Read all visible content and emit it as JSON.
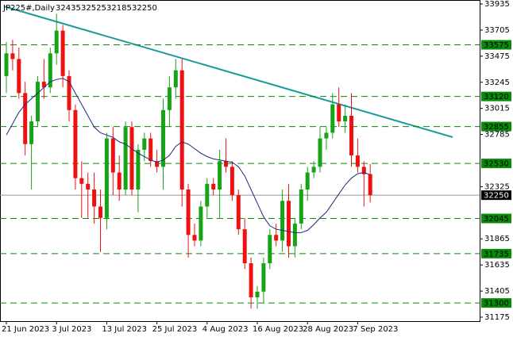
{
  "chart_data": {
    "type": "candlestick",
    "title": "JP225#,Daily",
    "categories": [
      "21 Jun 2023",
      null,
      null,
      null,
      null,
      null,
      null,
      null,
      "3 Jul 2023",
      null,
      null,
      null,
      null,
      null,
      null,
      null,
      "13 Jul 2023",
      null,
      null,
      null,
      null,
      null,
      null,
      null,
      "25 Jul 2023",
      null,
      null,
      null,
      null,
      null,
      null,
      null,
      "4 Aug 2023",
      null,
      null,
      null,
      null,
      null,
      null,
      null,
      "16 Aug 2023",
      null,
      null,
      null,
      null,
      null,
      null,
      null,
      "28 Aug 2023",
      null,
      null,
      null,
      null,
      null,
      null,
      null,
      "7 Sep 2023",
      null,
      null
    ],
    "open": [
      33300,
      33500,
      33450,
      33150,
      32700,
      32900,
      33250,
      33200,
      33500,
      33700,
      33300,
      33000,
      32400,
      32350,
      32300,
      32150,
      32050,
      32750,
      32450,
      32300,
      32850,
      32300,
      32650,
      32750,
      32550,
      32500,
      33000,
      33200,
      33350,
      32300,
      31900,
      31850,
      32150,
      32350,
      32300,
      32550,
      32500,
      32250,
      31950,
      31650,
      31350,
      31400,
      31650,
      31900,
      31850,
      32200,
      31800,
      32000,
      32300,
      32450,
      32500,
      32750,
      32800,
      33050,
      32900,
      32950,
      32600,
      32500,
      32435
    ],
    "high": [
      33600,
      33620,
      33550,
      33250,
      32950,
      33300,
      33450,
      33550,
      33850,
      33750,
      33350,
      33050,
      32550,
      32450,
      32450,
      32300,
      32800,
      32850,
      32600,
      32900,
      32900,
      32700,
      32800,
      32800,
      32650,
      33100,
      33300,
      33450,
      33450,
      32350,
      32000,
      32200,
      32400,
      32400,
      32650,
      32750,
      32550,
      32300,
      32050,
      31700,
      31450,
      31700,
      31950,
      32000,
      32300,
      32350,
      32050,
      32350,
      32500,
      32550,
      32850,
      32850,
      33150,
      33200,
      33050,
      33150,
      32750,
      32550,
      32525
    ],
    "low": [
      33150,
      33350,
      33100,
      32600,
      32300,
      32850,
      33100,
      33150,
      33400,
      33200,
      32900,
      32300,
      32050,
      32050,
      32000,
      31750,
      31950,
      32250,
      32200,
      32250,
      32250,
      32100,
      32550,
      32500,
      32450,
      32300,
      32850,
      33100,
      32150,
      31700,
      31800,
      31800,
      32050,
      32250,
      32050,
      32450,
      32200,
      31900,
      31600,
      31250,
      31250,
      31300,
      31600,
      31800,
      31750,
      31700,
      31700,
      31950,
      32200,
      32400,
      32450,
      32650,
      32750,
      32850,
      32800,
      32500,
      32450,
      32150,
      32185
    ],
    "close": [
      33500,
      33450,
      33150,
      32700,
      32900,
      33250,
      33200,
      33500,
      33700,
      33300,
      33000,
      32400,
      32350,
      32300,
      32150,
      32050,
      32750,
      32450,
      32300,
      32850,
      32300,
      32650,
      32750,
      32550,
      32500,
      33000,
      33200,
      33350,
      32300,
      31900,
      31850,
      32150,
      32350,
      32300,
      32550,
      32500,
      32250,
      31950,
      31650,
      31350,
      31400,
      31650,
      31900,
      31850,
      32200,
      31800,
      32000,
      32300,
      32450,
      32500,
      32750,
      32800,
      33050,
      32900,
      32950,
      32600,
      32500,
      32435,
      32250
    ],
    "up_color": "#17a317",
    "down_color": "#ee1111",
    "ma": {
      "color": "#1c2a78",
      "values": [
        32780,
        32880,
        32980,
        33050,
        33100,
        33150,
        33200,
        33250,
        33270,
        33280,
        33250,
        33150,
        33050,
        32950,
        32850,
        32800,
        32780,
        32760,
        32720,
        32700,
        32660,
        32620,
        32590,
        32560,
        32540,
        32560,
        32600,
        32680,
        32720,
        32700,
        32660,
        32620,
        32590,
        32570,
        32560,
        32550,
        32540,
        32500,
        32420,
        32300,
        32180,
        32060,
        31980,
        31950,
        31940,
        31930,
        31920,
        31920,
        31940,
        31990,
        32050,
        32100,
        32180,
        32260,
        32340,
        32400,
        32440,
        32450,
        32430
      ]
    },
    "levels": [
      33575,
      33120,
      32855,
      32530,
      32045,
      31735,
      31300
    ],
    "level_color": "#0a8a0a",
    "last_price": 32250,
    "ylim": [
      31140,
      33970
    ],
    "yticks": [
      33935,
      33705,
      33475,
      33245,
      33015,
      32785,
      32325,
      31865,
      31635,
      31405,
      31175
    ]
  }
}
